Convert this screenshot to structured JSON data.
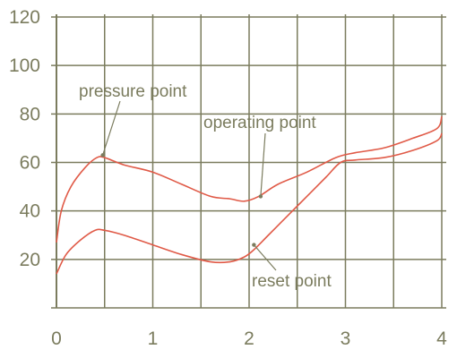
{
  "chart_data": {
    "type": "line",
    "title": "",
    "xlabel": "",
    "ylabel": "",
    "xlim": [
      0,
      4
    ],
    "ylim": [
      0,
      120
    ],
    "xticks": [
      0,
      1,
      2,
      3,
      4
    ],
    "yticks": [
      20,
      40,
      60,
      80,
      100,
      120
    ],
    "grid": true,
    "series": [
      {
        "x": [
          0,
          0.05,
          0.15,
          0.3,
          0.42,
          0.5,
          0.7,
          1.0,
          1.3,
          1.6,
          1.8,
          1.95,
          2.1,
          2.3,
          2.6,
          2.9,
          3.1,
          3.4,
          3.7,
          3.95,
          4.0
        ],
        "y": [
          27,
          40,
          50,
          58,
          62,
          62,
          59,
          56,
          51,
          46,
          45,
          44,
          46,
          51,
          56,
          62,
          64,
          66,
          70,
          74,
          79
        ]
      },
      {
        "x": [
          0,
          0.1,
          0.25,
          0.4,
          0.5,
          0.7,
          1.0,
          1.3,
          1.6,
          1.8,
          1.95,
          2.05,
          2.2,
          2.4,
          2.6,
          2.8,
          2.95,
          3.1,
          3.4,
          3.7,
          3.95,
          4.0
        ],
        "y": [
          14,
          22,
          28,
          32,
          32,
          30,
          26,
          22,
          19,
          19,
          21,
          24,
          30,
          38,
          46,
          54,
          60,
          61,
          62,
          65,
          69,
          72
        ]
      }
    ],
    "annotations": [
      {
        "text": "pressure point",
        "x": 0.48,
        "y": 63
      },
      {
        "text": "operating point",
        "x": 2.12,
        "y": 46
      },
      {
        "text": "reset point",
        "x": 2.05,
        "y": 26
      }
    ]
  },
  "colors": {
    "grid": "#7b7c5e",
    "line": "#e05a47",
    "text": "#7b7c5e",
    "background": "#ffffff"
  }
}
